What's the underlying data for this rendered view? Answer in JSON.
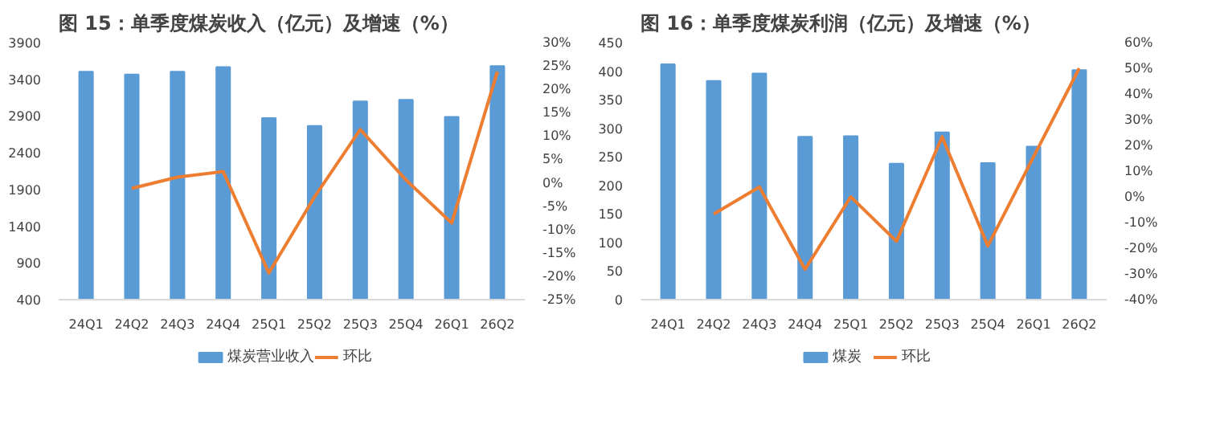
{
  "chart_data": [
    {
      "type": "bar",
      "title": "图 15：单季度煤炭收入（亿元）及增速（%）",
      "categories": [
        "24Q1",
        "24Q2",
        "24Q3",
        "24Q4",
        "25Q1",
        "25Q2",
        "25Q3",
        "25Q4",
        "26Q1",
        "26Q2"
      ],
      "series": [
        {
          "name": "煤炭营业收入",
          "type": "bar",
          "color": "#5b9bd5",
          "values": [
            3503,
            3464,
            3503,
            3566,
            2873,
            2764,
            3099,
            3122,
            2888,
            3581
          ]
        },
        {
          "name": "环比",
          "type": "line",
          "axis": "y2",
          "color": "#ed7d31",
          "values": [
            null,
            -1.2,
            1.2,
            2.4,
            -19.3,
            -3,
            11.4,
            0.6,
            -8.6,
            23.8
          ]
        }
      ],
      "ylim": [
        400,
        3900
      ],
      "yticks": [
        400,
        900,
        1400,
        1900,
        2400,
        2900,
        3400,
        3900
      ],
      "y2lim": [
        -25,
        30
      ],
      "y2ticks": [
        {
          "value": -25,
          "label": "-25%"
        },
        {
          "value": -20,
          "label": "-20%"
        },
        {
          "value": -15,
          "label": "-15%"
        },
        {
          "value": -10,
          "label": "-10%"
        },
        {
          "value": -5,
          "label": "-5%"
        },
        {
          "value": 0,
          "label": "0%"
        },
        {
          "value": 5,
          "label": "5%"
        },
        {
          "value": 10,
          "label": "10%"
        },
        {
          "value": 15,
          "label": "15%"
        },
        {
          "value": 20,
          "label": "20%"
        },
        {
          "value": 25,
          "label": "25%"
        },
        {
          "value": 30,
          "label": "30%"
        }
      ],
      "legend": "bottom",
      "grid": false,
      "marker": "none",
      "line_style": "solid"
    },
    {
      "type": "bar",
      "title": "图 16：单季度煤炭利润（亿元）及增速（%）",
      "categories": [
        "24Q1",
        "24Q2",
        "24Q3",
        "24Q4",
        "25Q1",
        "25Q2",
        "25Q3",
        "25Q4",
        "26Q1",
        "26Q2"
      ],
      "series": [
        {
          "name": "煤炭",
          "type": "bar",
          "color": "#5b9bd5",
          "values": [
            412,
            383,
            396,
            285,
            286,
            238,
            293,
            239,
            268,
            402
          ]
        },
        {
          "name": "环比",
          "type": "line",
          "axis": "y2",
          "color": "#ed7d31",
          "values": [
            null,
            -6.7,
            3.8,
            -28.2,
            0,
            -17.3,
            23.3,
            -19.1,
            15.6,
            50
          ]
        }
      ],
      "ylim": [
        0,
        450
      ],
      "yticks": [
        0,
        50,
        100,
        150,
        200,
        250,
        300,
        350,
        400,
        450
      ],
      "y2lim": [
        -40,
        60
      ],
      "y2ticks": [
        {
          "value": -40,
          "label": "-40%"
        },
        {
          "value": -30,
          "label": "-30%"
        },
        {
          "value": -20,
          "label": "-20%"
        },
        {
          "value": -10,
          "label": "-10%"
        },
        {
          "value": 0,
          "label": "0%"
        },
        {
          "value": 10,
          "label": "10%"
        },
        {
          "value": 20,
          "label": "20%"
        },
        {
          "value": 30,
          "label": "30%"
        },
        {
          "value": 40,
          "label": "40%"
        },
        {
          "value": 50,
          "label": "50%"
        },
        {
          "value": 60,
          "label": "60%"
        }
      ],
      "legend": "bottom",
      "grid": false,
      "marker": "none",
      "line_style": "solid"
    }
  ]
}
